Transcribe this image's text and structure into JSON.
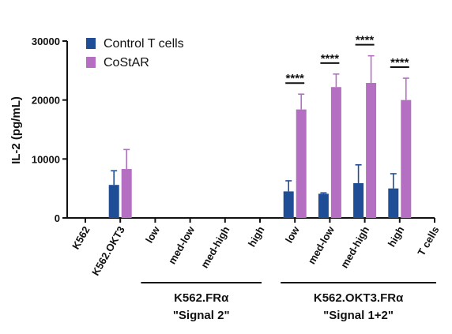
{
  "chart_data": {
    "type": "bar",
    "title": "",
    "xlabel": "",
    "ylabel": "IL-2 (pg/mL)",
    "ylim": [
      0,
      30000
    ],
    "yticks": [
      "0",
      "10000",
      "20000",
      "30000"
    ],
    "grid": false,
    "legend_position": "top-left",
    "categories": [
      "K562",
      "K562.OKT3",
      "low",
      "med-low",
      "med-high",
      "high",
      "low",
      "med-low",
      "med-high",
      "high",
      "T cells"
    ],
    "series": [
      {
        "name": "Control T cells",
        "color": "#1f4e96",
        "values": [
          0,
          5600,
          0,
          0,
          0,
          0,
          4500,
          4100,
          5900,
          5000,
          0
        ],
        "errors": [
          0,
          2400,
          0,
          0,
          0,
          0,
          1800,
          150,
          3100,
          2500,
          0
        ]
      },
      {
        "name": "CoStAR",
        "color": "#b46fc3",
        "values": [
          0,
          8300,
          0,
          0,
          0,
          0,
          18400,
          22200,
          22900,
          20000,
          0
        ],
        "errors": [
          0,
          3300,
          0,
          0,
          0,
          0,
          2600,
          2200,
          4600,
          3700,
          0
        ]
      }
    ],
    "significance": [
      {
        "category_index": 6,
        "label": "****"
      },
      {
        "category_index": 7,
        "label": "****"
      },
      {
        "category_index": 8,
        "label": "****"
      },
      {
        "category_index": 9,
        "label": "****"
      }
    ],
    "groups": [
      {
        "line1": "K562.FRα",
        "line2": "\"Signal 2\"",
        "from_index": 2,
        "to_index": 5
      },
      {
        "line1": "K562.OKT3.FRα",
        "line2": "\"Signal 1+2\"",
        "from_index": 6,
        "to_index": 10
      }
    ]
  }
}
